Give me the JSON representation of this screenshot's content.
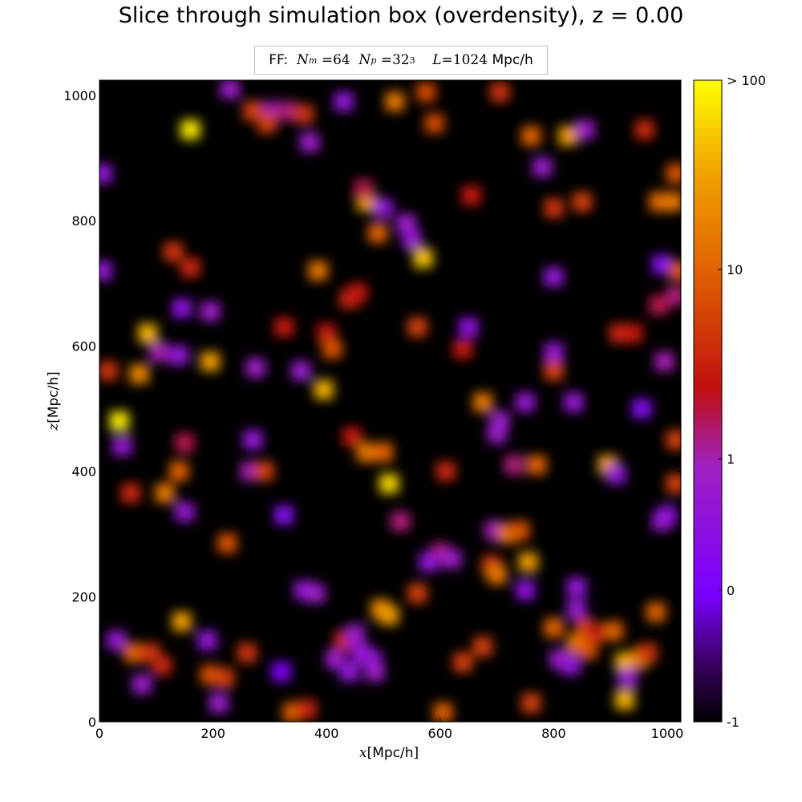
{
  "title": "Slice through simulation box (overdensity), z = 0.00",
  "subtitle": {
    "prefix": "FF:",
    "nm_label": "N",
    "nm_sub": "m",
    "nm_value": "=64",
    "np_label": "N",
    "np_sub": "p",
    "np_value": "=32",
    "np_sup": "3",
    "l_label": "L",
    "l_value": "=1024",
    "l_unit": "Mpc/h"
  },
  "xlabel": {
    "var": "x",
    "unit": "[Mpc/h]"
  },
  "ylabel": {
    "var": "z",
    "unit": "[Mpc/h]"
  },
  "colors": {
    "cmap": [
      "#000000",
      "#3a0060",
      "#7a00ff",
      "#a020c0",
      "#c01010",
      "#e06000",
      "#f0a000",
      "#ffff00"
    ]
  },
  "chart_data": {
    "type": "heatmap",
    "title": "Slice through simulation box (overdensity), z = 0.00",
    "xlabel": "x[Mpc/h]",
    "ylabel": "z[Mpc/h]",
    "xlim": [
      0,
      1024
    ],
    "ylim": [
      0,
      1024
    ],
    "xticks": [
      0,
      200,
      400,
      600,
      800,
      1000
    ],
    "yticks": [
      0,
      200,
      400,
      600,
      800,
      1000
    ],
    "colorbar": {
      "ticks": [
        "-1",
        "0",
        "1",
        "10",
        "> 100"
      ],
      "tick_values": [
        -1,
        0,
        1,
        10,
        100
      ],
      "scale": "log(1+delta)"
    },
    "blobs": [
      [
        230,
        1010,
        0.8
      ],
      [
        270,
        975,
        6
      ],
      [
        305,
        975,
        1
      ],
      [
        330,
        975,
        1.5
      ],
      [
        360,
        970,
        5
      ],
      [
        430,
        990,
        0.5
      ],
      [
        520,
        990,
        15
      ],
      [
        575,
        1005,
        7
      ],
      [
        705,
        1005,
        5
      ],
      [
        160,
        945,
        80
      ],
      [
        295,
        955,
        6
      ],
      [
        590,
        955,
        7
      ],
      [
        760,
        935,
        10
      ],
      [
        825,
        935,
        30
      ],
      [
        855,
        945,
        0.8
      ],
      [
        960,
        945,
        4
      ],
      [
        370,
        925,
        0.8
      ],
      [
        5,
        875,
        0.5
      ],
      [
        780,
        885,
        0.7
      ],
      [
        1015,
        875,
        8
      ],
      [
        470,
        830,
        30
      ],
      [
        465,
        850,
        2
      ],
      [
        500,
        820,
        0.5
      ],
      [
        655,
        840,
        3
      ],
      [
        800,
        820,
        5
      ],
      [
        850,
        830,
        6
      ],
      [
        985,
        830,
        12
      ],
      [
        1010,
        830,
        15
      ],
      [
        490,
        780,
        10
      ],
      [
        540,
        795,
        0.8
      ],
      [
        550,
        770,
        0.6
      ],
      [
        130,
        750,
        5
      ],
      [
        160,
        725,
        4
      ],
      [
        5,
        720,
        0.5
      ],
      [
        385,
        720,
        15
      ],
      [
        570,
        740,
        50
      ],
      [
        800,
        710,
        0.5
      ],
      [
        990,
        730,
        0.2
      ],
      [
        1020,
        720,
        8
      ],
      [
        145,
        660,
        0.4
      ],
      [
        195,
        655,
        0.8
      ],
      [
        440,
        675,
        4
      ],
      [
        455,
        685,
        3
      ],
      [
        985,
        665,
        2
      ],
      [
        1015,
        680,
        1.5
      ],
      [
        85,
        620,
        40
      ],
      [
        325,
        630,
        3
      ],
      [
        400,
        620,
        3
      ],
      [
        560,
        630,
        6
      ],
      [
        650,
        630,
        0.4
      ],
      [
        915,
        620,
        4
      ],
      [
        940,
        620,
        3
      ],
      [
        105,
        590,
        1
      ],
      [
        140,
        585,
        0.5
      ],
      [
        195,
        575,
        30
      ],
      [
        410,
        595,
        8
      ],
      [
        640,
        595,
        3
      ],
      [
        800,
        590,
        0.6
      ],
      [
        15,
        560,
        5
      ],
      [
        70,
        555,
        20
      ],
      [
        275,
        565,
        0.8
      ],
      [
        355,
        560,
        0.7
      ],
      [
        395,
        530,
        40
      ],
      [
        800,
        560,
        6
      ],
      [
        995,
        575,
        1
      ],
      [
        35,
        480,
        80
      ],
      [
        675,
        510,
        15
      ],
      [
        705,
        480,
        0.7
      ],
      [
        750,
        510,
        0.6
      ],
      [
        835,
        510,
        0.6
      ],
      [
        955,
        500,
        0.15
      ],
      [
        40,
        440,
        0.6
      ],
      [
        150,
        445,
        2
      ],
      [
        270,
        450,
        0.5
      ],
      [
        445,
        455,
        3
      ],
      [
        470,
        430,
        15
      ],
      [
        500,
        430,
        10
      ],
      [
        700,
        460,
        0.7
      ],
      [
        1015,
        450,
        6
      ],
      [
        140,
        400,
        10
      ],
      [
        265,
        400,
        1
      ],
      [
        290,
        400,
        6
      ],
      [
        610,
        400,
        4
      ],
      [
        730,
        410,
        1.5
      ],
      [
        770,
        410,
        10
      ],
      [
        895,
        410,
        30
      ],
      [
        910,
        395,
        0.5
      ],
      [
        55,
        365,
        4
      ],
      [
        115,
        365,
        15
      ],
      [
        510,
        380,
        60
      ],
      [
        1015,
        380,
        6
      ],
      [
        150,
        335,
        0.6
      ],
      [
        325,
        330,
        0.2
      ],
      [
        1000,
        330,
        0.4
      ],
      [
        990,
        320,
        0.6
      ],
      [
        225,
        285,
        8
      ],
      [
        530,
        320,
        1.5
      ],
      [
        600,
        270,
        1.5
      ],
      [
        620,
        260,
        0.8
      ],
      [
        580,
        255,
        0.5
      ],
      [
        695,
        305,
        1
      ],
      [
        720,
        300,
        15
      ],
      [
        740,
        305,
        8
      ],
      [
        755,
        255,
        30
      ],
      [
        690,
        250,
        5
      ],
      [
        700,
        235,
        15
      ],
      [
        750,
        210,
        0.4
      ],
      [
        840,
        215,
        0.5
      ],
      [
        360,
        210,
        0.5
      ],
      [
        380,
        205,
        0.8
      ],
      [
        560,
        205,
        6
      ],
      [
        840,
        180,
        0.6
      ],
      [
        980,
        175,
        10
      ],
      [
        145,
        160,
        30
      ],
      [
        495,
        180,
        20
      ],
      [
        510,
        170,
        30
      ],
      [
        800,
        150,
        10
      ],
      [
        855,
        150,
        6
      ],
      [
        870,
        140,
        3
      ],
      [
        905,
        145,
        10
      ],
      [
        840,
        125,
        15
      ],
      [
        860,
        115,
        8
      ],
      [
        30,
        130,
        0.6
      ],
      [
        60,
        110,
        10
      ],
      [
        90,
        110,
        5
      ],
      [
        110,
        90,
        4
      ],
      [
        190,
        130,
        0.5
      ],
      [
        260,
        110,
        5
      ],
      [
        430,
        130,
        4
      ],
      [
        450,
        140,
        0.8
      ],
      [
        460,
        110,
        0.6
      ],
      [
        480,
        100,
        0.5
      ],
      [
        675,
        120,
        6
      ],
      [
        810,
        100,
        0.8
      ],
      [
        830,
        90,
        0.5
      ],
      [
        925,
        95,
        40
      ],
      [
        950,
        100,
        20
      ],
      [
        965,
        110,
        5
      ],
      [
        930,
        70,
        0.7
      ],
      [
        640,
        95,
        6
      ],
      [
        75,
        60,
        0.7
      ],
      [
        195,
        75,
        8
      ],
      [
        220,
        70,
        6
      ],
      [
        415,
        100,
        0.8
      ],
      [
        440,
        80,
        0.5
      ],
      [
        485,
        80,
        0.8
      ],
      [
        320,
        80,
        0.1
      ],
      [
        210,
        30,
        0.7
      ],
      [
        340,
        15,
        10
      ],
      [
        365,
        20,
        4
      ],
      [
        605,
        15,
        10
      ],
      [
        760,
        30,
        6
      ],
      [
        925,
        35,
        40
      ]
    ]
  }
}
